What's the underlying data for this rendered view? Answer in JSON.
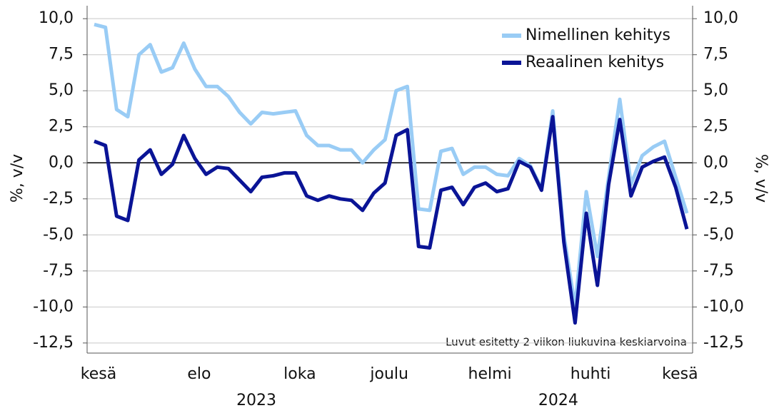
{
  "chart_data": {
    "type": "line",
    "y_label": "%, v/v",
    "y2_label": "%, v/v",
    "annotation": "Luvut esitetty 2 viikon liukuvina keskiarvoina",
    "legend": "upper right",
    "grid": true,
    "categories": [
      "kesä",
      null,
      null,
      null,
      null,
      null,
      null,
      null,
      null,
      "elo",
      null,
      null,
      null,
      null,
      null,
      null,
      null,
      null,
      "loka",
      null,
      null,
      null,
      null,
      null,
      null,
      null,
      "joulu",
      null,
      null,
      null,
      null,
      null,
      null,
      null,
      null,
      "helmi",
      null,
      null,
      null,
      null,
      null,
      null,
      null,
      null,
      "huhti",
      null,
      null,
      null,
      null,
      null,
      null,
      null,
      "kesä",
      null
    ],
    "year_groups": [
      {
        "label": "2023",
        "from": 0,
        "to": 29
      },
      {
        "label": "2024",
        "from": 30,
        "to": 53
      }
    ],
    "series": [
      {
        "name": "Nimellinen kehitys",
        "color": "#99ccf5",
        "values": [
          9.6,
          9.4,
          3.7,
          3.2,
          7.5,
          8.2,
          6.3,
          6.6,
          8.3,
          6.5,
          5.3,
          5.3,
          4.6,
          3.5,
          2.7,
          3.5,
          3.4,
          3.5,
          3.6,
          1.9,
          1.2,
          1.2,
          0.9,
          0.9,
          0.0,
          0.9,
          1.6,
          5.0,
          5.3,
          -3.2,
          -3.3,
          0.8,
          1.0,
          -0.8,
          -0.3,
          -0.3,
          -0.8,
          -0.9,
          0.3,
          -0.2,
          -1.8,
          3.6,
          -5.0,
          -10.0,
          -2.0,
          -6.5,
          -1.0,
          4.4,
          -1.5,
          0.5,
          1.1,
          1.5,
          -1.0,
          -3.5
        ]
      },
      {
        "name": "Reaalinen kehitys",
        "color": "#0a1496",
        "values": [
          1.5,
          1.2,
          -3.7,
          -4.0,
          0.2,
          0.9,
          -0.8,
          -0.1,
          1.9,
          0.3,
          -0.8,
          -0.3,
          -0.4,
          -1.2,
          -2.0,
          -1.0,
          -0.9,
          -0.7,
          -0.7,
          -2.3,
          -2.6,
          -2.3,
          -2.5,
          -2.6,
          -3.3,
          -2.1,
          -1.4,
          1.9,
          2.3,
          -5.8,
          -5.9,
          -1.9,
          -1.7,
          -2.9,
          -1.7,
          -1.4,
          -2.0,
          -1.8,
          0.1,
          -0.3,
          -1.9,
          3.2,
          -5.5,
          -11.1,
          -3.5,
          -8.5,
          -1.5,
          3.0,
          -2.3,
          -0.3,
          0.1,
          0.4,
          -1.7,
          -4.6
        ]
      }
    ],
    "ylim": [
      -13.2,
      10.9
    ],
    "yticks": [
      {
        "value": 10,
        "label": "10,0"
      },
      {
        "value": 7.5,
        "label": "7,5"
      },
      {
        "value": 5,
        "label": "5,0"
      },
      {
        "value": 2.5,
        "label": "2,5"
      },
      {
        "value": 0,
        "label": "0,0"
      },
      {
        "value": -2.5,
        "label": "-2,5"
      },
      {
        "value": -5,
        "label": "-5,0"
      },
      {
        "value": -7.5,
        "label": "-7,5"
      },
      {
        "value": -10,
        "label": "-10,0"
      },
      {
        "value": -12.5,
        "label": "-12,5"
      }
    ],
    "y2lim": [
      -13.2,
      10.9
    ],
    "y2ticks": [
      {
        "value": 10,
        "label": "10,0"
      },
      {
        "value": 7.5,
        "label": "7,5"
      },
      {
        "value": 5,
        "label": "5,0"
      },
      {
        "value": 2.5,
        "label": "2,5"
      },
      {
        "value": 0,
        "label": "0,0"
      },
      {
        "value": -2.5,
        "label": "-2,5"
      },
      {
        "value": -5,
        "label": "-5,0"
      },
      {
        "value": -7.5,
        "label": "-7,5"
      },
      {
        "value": -10,
        "label": "-10,0"
      },
      {
        "value": -12.5,
        "label": "-12,5"
      }
    ]
  }
}
